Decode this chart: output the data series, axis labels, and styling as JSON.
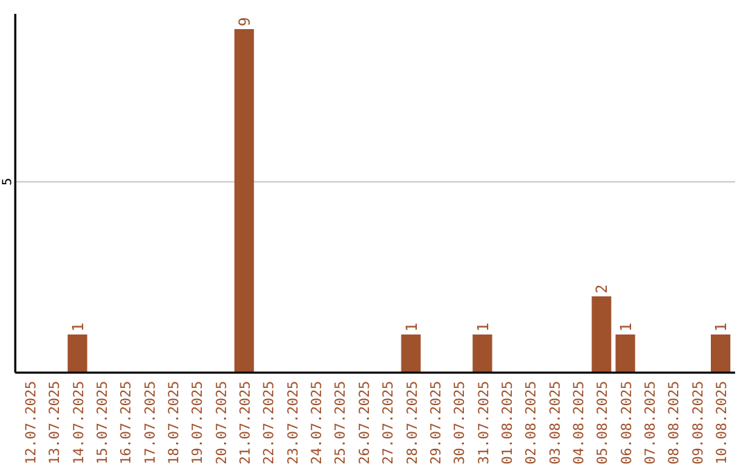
{
  "chart_data": {
    "type": "bar",
    "categories": [
      "12.07.2025",
      "13.07.2025",
      "14.07.2025",
      "15.07.2025",
      "16.07.2025",
      "17.07.2025",
      "18.07.2025",
      "19.07.2025",
      "20.07.2025",
      "21.07.2025",
      "22.07.2025",
      "23.07.2025",
      "24.07.2025",
      "25.07.2025",
      "26.07.2025",
      "27.07.2025",
      "28.07.2025",
      "29.07.2025",
      "30.07.2025",
      "31.07.2025",
      "01.08.2025",
      "02.08.2025",
      "03.08.2025",
      "04.08.2025",
      "05.08.2025",
      "06.08.2025",
      "07.08.2025",
      "08.08.2025",
      "09.08.2025",
      "10.08.2025"
    ],
    "values": [
      0,
      0,
      1,
      0,
      0,
      0,
      0,
      0,
      0,
      9,
      0,
      0,
      0,
      0,
      0,
      0,
      1,
      0,
      0,
      1,
      0,
      0,
      0,
      0,
      2,
      1,
      0,
      0,
      0,
      1
    ],
    "value_labels": [
      null,
      null,
      "1",
      null,
      null,
      null,
      null,
      null,
      null,
      "9",
      null,
      null,
      null,
      null,
      null,
      null,
      "1",
      null,
      null,
      "1",
      null,
      null,
      null,
      null,
      "2",
      "1",
      null,
      null,
      null,
      "1"
    ],
    "color": "#a0522d",
    "ylim": [
      0,
      9.4
    ],
    "yticks": [
      5
    ],
    "grid": "y"
  }
}
